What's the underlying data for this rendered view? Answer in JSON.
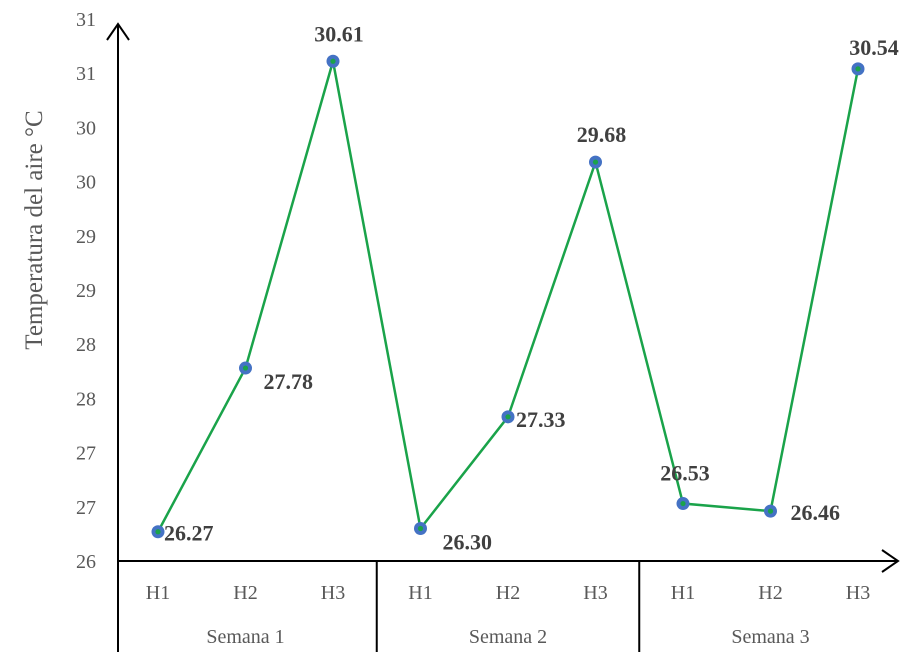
{
  "chart_data": {
    "type": "line",
    "ylabel": "Temperatura del aire °C",
    "ylim": [
      26,
      31
    ],
    "y_tick_labels": [
      "26",
      "27",
      "27",
      "28",
      "28",
      "29",
      "29",
      "30",
      "30",
      "31",
      "31"
    ],
    "categories": [
      "H1",
      "H2",
      "H3",
      "H1",
      "H2",
      "H3",
      "H1",
      "H2",
      "H3"
    ],
    "groups": [
      {
        "label": "Semana 1",
        "span": 3
      },
      {
        "label": "Semana 2",
        "span": 3
      },
      {
        "label": "Semana 3",
        "span": 3
      }
    ],
    "series": [
      {
        "values": [
          26.27,
          27.78,
          30.61,
          26.3,
          27.33,
          29.68,
          26.53,
          26.46,
          30.54
        ],
        "labels": [
          "26.27",
          "27.78",
          "30.61",
          "26.30",
          "27.33",
          "29.68",
          "26.53",
          "26.46",
          "30.54"
        ],
        "line_color": "#1aa34a",
        "marker_color": "#4472c4",
        "marker_center_color": "#1aa34a"
      }
    ],
    "grid": false,
    "legend": "none"
  }
}
